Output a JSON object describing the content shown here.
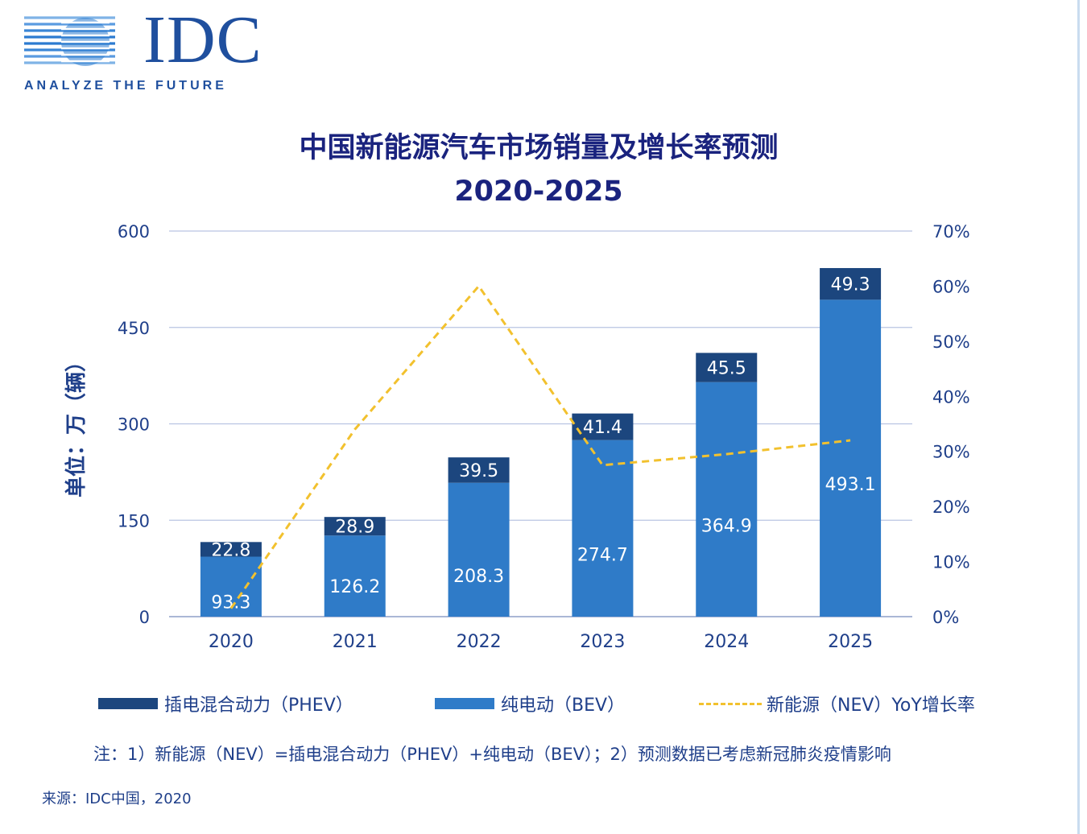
{
  "logo": {
    "brand": "IDC",
    "tagline": "ANALYZE THE FUTURE"
  },
  "chart_data": {
    "type": "bar",
    "stacked": true,
    "title": "中国新能源汽车市场销量及增长率预测",
    "subtitle": "2020-2025",
    "categories": [
      "2020",
      "2021",
      "2022",
      "2023",
      "2024",
      "2025"
    ],
    "series": [
      {
        "name": "纯电动（BEV）",
        "values": [
          93.3,
          126.2,
          208.3,
          274.7,
          364.9,
          493.1
        ],
        "color": "#2f7bc8"
      },
      {
        "name": "插电混合动力（PHEV）",
        "values": [
          22.8,
          28.9,
          39.5,
          41.4,
          45.5,
          49.3
        ],
        "color": "#1c467e"
      }
    ],
    "line_series": {
      "name": "新能源（NEV）YoY增长率",
      "axis": "right",
      "values": [
        1.5,
        34,
        60,
        27.5,
        29.5,
        32
      ],
      "color": "#f2c12e",
      "style": "dashed"
    },
    "ylabel": "单位：万（辆）",
    "ylim": [
      0,
      600
    ],
    "yticks": [
      "0",
      "150",
      "300",
      "450",
      "600"
    ],
    "y2lim": [
      0,
      70
    ],
    "y2ticks": [
      "0%",
      "10%",
      "20%",
      "30%",
      "40%",
      "50%",
      "60%",
      "70%"
    ],
    "grid": true,
    "legend_position": "bottom"
  },
  "note": "注：1）新能源（NEV）=插电混合动力（PHEV）+纯电动（BEV）；2）预测数据已考虑新冠肺炎疫情影响",
  "source": "来源：IDC中国，2020"
}
